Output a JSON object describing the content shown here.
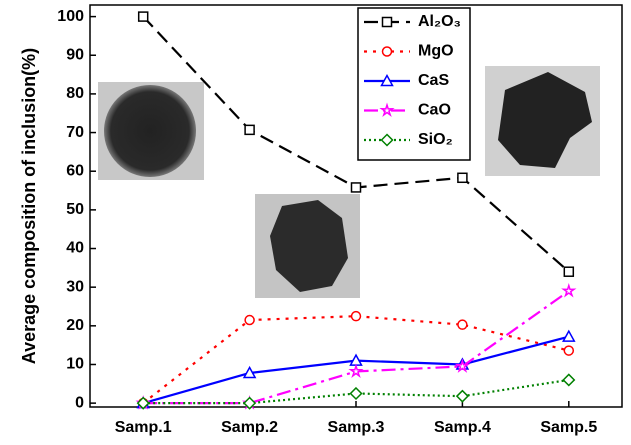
{
  "chart_data": {
    "type": "line",
    "y_label": "Average composition of inclusion(%)",
    "categories": [
      "Samp.1",
      "Samp.2",
      "Samp.3",
      "Samp.4",
      "Samp.5"
    ],
    "series": [
      {
        "name": "Al₂O₃",
        "color": "#000000",
        "dash": "14 7",
        "marker": "square",
        "values": [
          100,
          70.7,
          55.8,
          58.3,
          34
        ]
      },
      {
        "name": "MgO",
        "color": "#ff0000",
        "dash": "3 6",
        "marker": "circle",
        "values": [
          0,
          21.5,
          22.5,
          20.3,
          13.6
        ]
      },
      {
        "name": "CaS",
        "color": "#0000ff",
        "dash": "none",
        "marker": "triangle",
        "values": [
          0,
          7.8,
          11,
          10,
          17.2
        ]
      },
      {
        "name": "CaO",
        "color": "#ff00ff",
        "dash": "14 5 3 5",
        "marker": "star",
        "values": [
          0,
          0,
          8.2,
          9.5,
          29
        ]
      },
      {
        "name": "SiO₂",
        "color": "#008000",
        "dash": "2 3",
        "marker": "diamond",
        "values": [
          0,
          0,
          2.5,
          1.8,
          6
        ]
      }
    ],
    "ylim": [
      -1,
      103
    ],
    "yticks": [
      0,
      10,
      20,
      30,
      40,
      50,
      60,
      70,
      80,
      90,
      100
    ],
    "legend": "top-right"
  }
}
